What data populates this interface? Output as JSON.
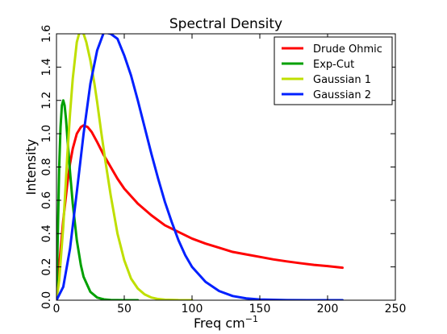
{
  "chart_data": {
    "type": "line",
    "title": "Spectral Density",
    "xlabel": "Freq cm",
    "xlabel_superscript": "−1",
    "ylabel": "Intensity",
    "xlim": [
      0,
      250
    ],
    "ylim": [
      0,
      1.6
    ],
    "xticks": [
      0,
      50,
      100,
      150,
      200,
      250
    ],
    "xtick_labels": [
      "0",
      "50",
      "100",
      "150",
      "200",
      "250"
    ],
    "yticks": [
      0.0,
      0.2,
      0.4,
      0.6,
      0.8,
      1.0,
      1.2,
      1.4,
      1.6
    ],
    "ytick_labels": [
      "0.0",
      "0.2",
      "0.4",
      "0.6",
      "0.8",
      "1.0",
      "1.2",
      "1.4",
      "1.6"
    ],
    "grid": false,
    "legend_position": "top-right",
    "series": [
      {
        "name": "Drude Ohmic",
        "color": "#ff0000",
        "x": [
          0,
          2,
          5,
          8,
          10,
          12,
          15,
          18,
          20,
          23,
          26,
          30,
          35,
          40,
          45,
          50,
          60,
          70,
          80,
          90,
          100,
          110,
          120,
          130,
          140,
          150,
          160,
          170,
          180,
          190,
          200,
          211
        ],
        "y": [
          0,
          0.21,
          0.48,
          0.7,
          0.82,
          0.91,
          1.0,
          1.04,
          1.05,
          1.04,
          1.01,
          0.95,
          0.87,
          0.8,
          0.73,
          0.67,
          0.58,
          0.51,
          0.45,
          0.41,
          0.37,
          0.34,
          0.315,
          0.29,
          0.275,
          0.26,
          0.245,
          0.233,
          0.222,
          0.212,
          0.205,
          0.195
        ]
      },
      {
        "name": "Exp-Cut",
        "color": "#00a000",
        "x": [
          0,
          1,
          2,
          3,
          4,
          5,
          6,
          7,
          8,
          10,
          12,
          15,
          18,
          20,
          25,
          30,
          35,
          40,
          50,
          60
        ],
        "y": [
          0,
          0.4,
          0.8,
          1.04,
          1.17,
          1.2,
          1.17,
          1.09,
          0.98,
          0.77,
          0.58,
          0.36,
          0.21,
          0.14,
          0.05,
          0.016,
          0.005,
          0.0015,
          0.0001,
          0
        ]
      },
      {
        "name": "Gaussian 1",
        "color": "#bfdf00",
        "x": [
          0,
          2,
          5,
          8,
          10,
          12,
          15,
          18,
          20,
          22,
          25,
          28,
          30,
          33,
          36,
          40,
          45,
          50,
          55,
          60,
          65,
          70,
          75,
          80,
          90,
          100
        ],
        "y": [
          0,
          0.12,
          0.44,
          0.87,
          1.12,
          1.33,
          1.55,
          1.64,
          1.6,
          1.55,
          1.44,
          1.3,
          1.19,
          1.01,
          0.84,
          0.63,
          0.4,
          0.24,
          0.13,
          0.07,
          0.035,
          0.016,
          0.007,
          0.003,
          0.0005,
          0
        ]
      },
      {
        "name": "Gaussian 2",
        "color": "#0020ff",
        "x": [
          0,
          5,
          10,
          15,
          20,
          25,
          30,
          35,
          40,
          45,
          50,
          55,
          60,
          65,
          70,
          75,
          80,
          85,
          90,
          95,
          100,
          110,
          120,
          130,
          140,
          150,
          170,
          190,
          211
        ],
        "y": [
          0,
          0.08,
          0.31,
          0.65,
          1.0,
          1.3,
          1.5,
          1.61,
          1.6,
          1.57,
          1.47,
          1.35,
          1.2,
          1.04,
          0.88,
          0.73,
          0.59,
          0.47,
          0.36,
          0.27,
          0.2,
          0.11,
          0.055,
          0.025,
          0.011,
          0.004,
          0.0005,
          0,
          0
        ]
      }
    ]
  }
}
